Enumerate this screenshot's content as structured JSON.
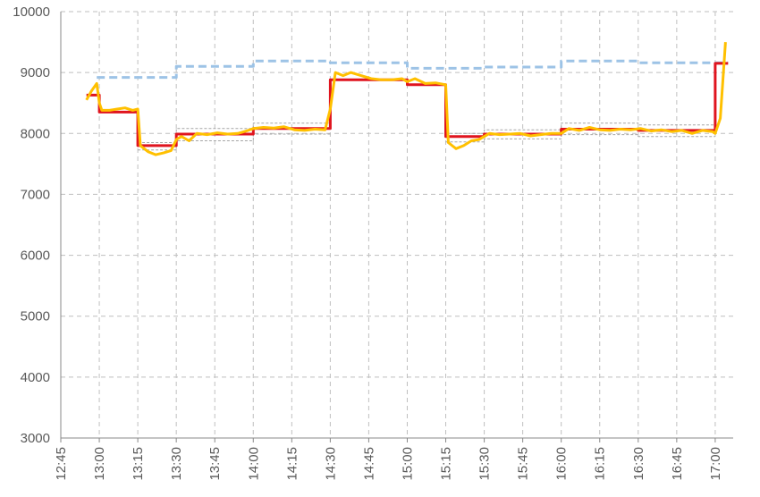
{
  "chart_data": {
    "type": "line",
    "xlim": [
      "12:45",
      "17:07"
    ],
    "xticks": [
      "12:45",
      "13:00",
      "13:15",
      "13:30",
      "13:45",
      "14:00",
      "14:15",
      "14:30",
      "14:45",
      "15:00",
      "15:15",
      "15:30",
      "15:45",
      "16:00",
      "16:15",
      "16:30",
      "16:45",
      "17:00"
    ],
    "ylim": [
      3000,
      10000
    ],
    "yticks": [
      3000,
      4000,
      5000,
      6000,
      7000,
      8000,
      9000,
      10000
    ],
    "grid": true,
    "series": [
      {
        "color": "#a5a5a5",
        "dash": true,
        "width": 1,
        "x": [
          "13:15",
          "13:30",
          "13:30",
          "14:00",
          "14:00",
          "14:30",
          "14:45",
          "15:15",
          "15:30",
          "15:30",
          "16:00",
          "16:00",
          "16:30",
          "16:30",
          "17:00"
        ],
        "values": [
          7850,
          7850,
          8080,
          8080,
          8170,
          8170,
          null,
          8000,
          8000,
          8060,
          8060,
          8170,
          8170,
          8140,
          8140
        ]
      },
      {
        "color": "#a5a5a5",
        "dash": true,
        "width": 1,
        "x": [
          "13:15",
          "13:30",
          "13:30",
          "14:00",
          "14:00",
          "14:30",
          "14:45",
          "15:15",
          "15:30",
          "15:30",
          "16:00",
          "16:00",
          "16:30",
          "16:30",
          "17:00"
        ],
        "values": [
          7730,
          7730,
          7880,
          7880,
          7990,
          7990,
          null,
          7860,
          7860,
          7910,
          7910,
          7980,
          7980,
          7950,
          7950
        ]
      },
      {
        "color": "#9dc3e6",
        "dash": true,
        "width": 3,
        "x": [
          "12:59",
          "13:30",
          "13:30",
          "14:00",
          "14:00",
          "14:30",
          "14:30",
          "15:00",
          "15:00",
          "15:30",
          "15:30",
          "16:00",
          "16:00",
          "16:30",
          "16:30",
          "17:05"
        ],
        "values": [
          8920,
          8920,
          9100,
          9100,
          9190,
          9190,
          9160,
          9160,
          9070,
          9070,
          9090,
          9090,
          9190,
          9190,
          9160,
          9160
        ]
      },
      {
        "color": "#e0141e",
        "dash": false,
        "width": 3,
        "x": [
          "12:55",
          "13:00",
          "13:00",
          "13:15",
          "13:15",
          "13:30",
          "13:30",
          "14:00",
          "14:00",
          "14:30",
          "14:30",
          "15:00",
          "15:00",
          "15:15",
          "15:15",
          "15:30",
          "15:30",
          "16:00",
          "16:00",
          "16:30",
          "16:30",
          "17:00",
          "17:00",
          "17:05"
        ],
        "values": [
          8630,
          8630,
          8350,
          8350,
          7800,
          7800,
          7990,
          7990,
          8080,
          8080,
          8880,
          8880,
          8800,
          8800,
          7950,
          7950,
          7990,
          7990,
          8070,
          8070,
          8050,
          8050,
          9150,
          9150
        ]
      },
      {
        "color": "#ffc000",
        "dash": false,
        "width": 3,
        "x": [
          "12:55",
          "12:57",
          "12:59",
          "13:00",
          "13:01",
          "13:04",
          "13:07",
          "13:10",
          "13:13",
          "13:15",
          "13:16",
          "13:19",
          "13:22",
          "13:25",
          "13:28",
          "13:30",
          "13:32",
          "13:35",
          "13:38",
          "13:42",
          "13:46",
          "13:50",
          "13:54",
          "13:58",
          "14:00",
          "14:04",
          "14:08",
          "14:12",
          "14:16",
          "14:20",
          "14:24",
          "14:28",
          "14:30",
          "14:32",
          "14:35",
          "14:38",
          "14:42",
          "14:46",
          "14:50",
          "14:54",
          "14:58",
          "15:00",
          "15:03",
          "15:07",
          "15:11",
          "15:15",
          "15:16",
          "15:19",
          "15:22",
          "15:25",
          "15:28",
          "15:32",
          "15:36",
          "15:40",
          "15:44",
          "15:48",
          "15:52",
          "15:56",
          "16:00",
          "16:03",
          "16:07",
          "16:11",
          "16:15",
          "16:19",
          "16:23",
          "16:27",
          "16:31",
          "16:35",
          "16:39",
          "16:43",
          "16:47",
          "16:51",
          "16:55",
          "16:59",
          "17:00",
          "17:02",
          "17:04"
        ],
        "values": [
          8550,
          8700,
          8820,
          8500,
          8380,
          8380,
          8400,
          8420,
          8380,
          8400,
          7800,
          7700,
          7650,
          7680,
          7720,
          7900,
          7950,
          7880,
          8000,
          7980,
          8010,
          7990,
          8000,
          8050,
          8080,
          8100,
          8090,
          8110,
          8060,
          8050,
          8070,
          8060,
          8400,
          9000,
          8950,
          9000,
          8950,
          8900,
          8880,
          8880,
          8900,
          8850,
          8900,
          8820,
          8830,
          8800,
          7850,
          7750,
          7800,
          7880,
          7900,
          8000,
          7980,
          7990,
          8000,
          7960,
          7980,
          8000,
          8000,
          8080,
          8050,
          8100,
          8060,
          8050,
          8070,
          8060,
          8080,
          8040,
          8060,
          8030,
          8050,
          8000,
          8050,
          8030,
          8000,
          8250,
          9500
        ]
      }
    ]
  }
}
